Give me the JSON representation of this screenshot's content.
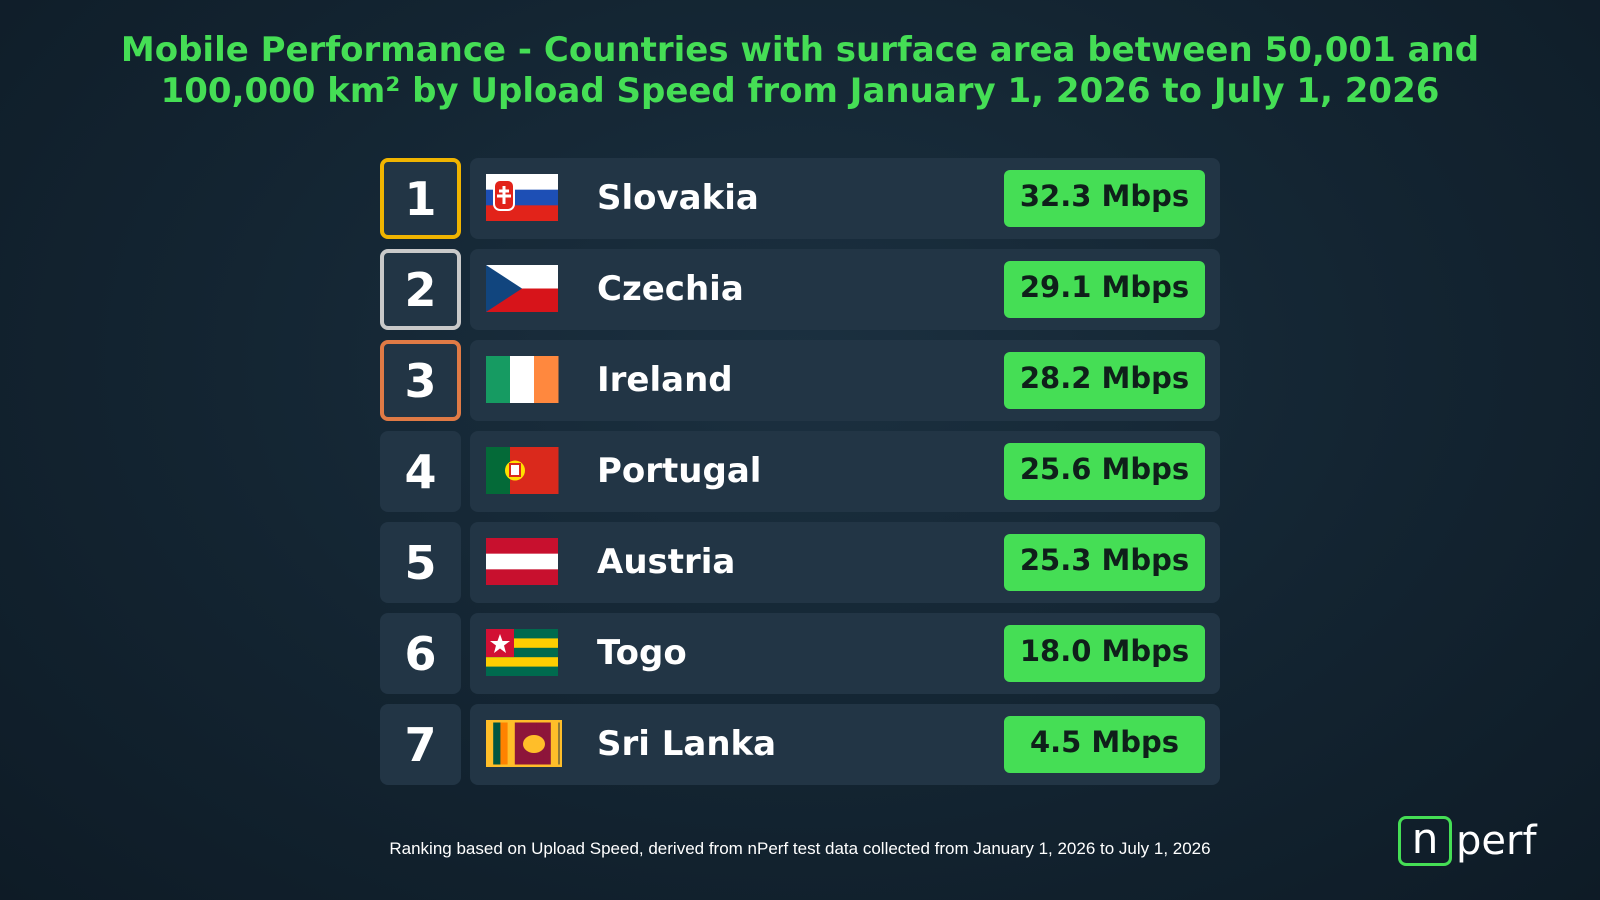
{
  "header": {
    "title": "Mobile Performance - Countries with surface area between 50,001 and 100,000 km² by Upload Speed from January 1, 2026 to July 1, 2026"
  },
  "ranking": {
    "rows": [
      {
        "rank": "1",
        "country": "Slovakia",
        "speed": "32.3 Mbps"
      },
      {
        "rank": "2",
        "country": "Czechia",
        "speed": "29.1 Mbps"
      },
      {
        "rank": "3",
        "country": "Ireland",
        "speed": "28.2 Mbps"
      },
      {
        "rank": "4",
        "country": "Portugal",
        "speed": "25.6 Mbps"
      },
      {
        "rank": "5",
        "country": "Austria",
        "speed": "25.3 Mbps"
      },
      {
        "rank": "6",
        "country": "Togo",
        "speed": "18.0 Mbps"
      },
      {
        "rank": "7",
        "country": "Sri Lanka",
        "speed": "4.5 Mbps"
      }
    ]
  },
  "footer": {
    "note": "Ranking based on Upload Speed, derived from nPerf test data collected from January 1, 2026 to July 1, 2026"
  },
  "logo": {
    "mark": "n",
    "text": "perf"
  }
}
